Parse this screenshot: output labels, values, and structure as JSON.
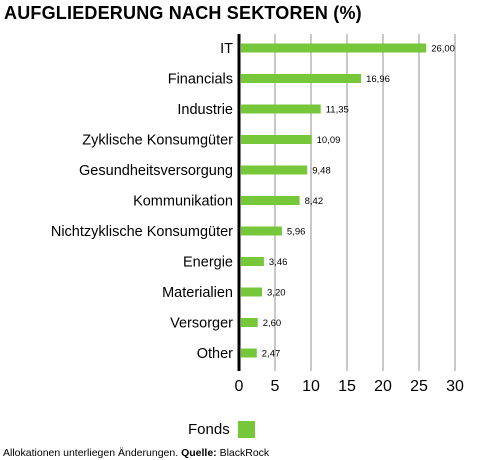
{
  "chart_data": {
    "type": "bar",
    "orientation": "horizontal",
    "title": "AUFGLIEDERUNG NACH SEKTOREN (%)",
    "categories": [
      "IT",
      "Financials",
      "Industrie",
      "Zyklische Konsumgüter",
      "Gesundheitsversorgung",
      "Kommunikation",
      "Nichtzyklische Konsumgüter",
      "Energie",
      "Materialien",
      "Versorger",
      "Other"
    ],
    "series": [
      {
        "name": "Fonds",
        "values": [
          26.0,
          16.96,
          11.35,
          10.09,
          9.48,
          8.42,
          5.96,
          3.46,
          3.2,
          2.6,
          2.47
        ],
        "labels": [
          "26,00",
          "16,96",
          "11,35",
          "10,09",
          "9,48",
          "8,42",
          "5,96",
          "3,46",
          "3,20",
          "2,60",
          "2,47"
        ],
        "color": "#76c83a"
      }
    ],
    "xlim": [
      0,
      30
    ],
    "xticks": [
      0,
      5,
      10,
      15,
      20,
      25,
      30
    ],
    "xlabel": "",
    "ylabel": "",
    "grid": "vertical",
    "legend_position": "bottom"
  },
  "footnote": {
    "text": "Allokationen unterliegen Änderungen.",
    "source_label": "Quelle:",
    "source": "BlackRock"
  },
  "colors": {
    "bar": "#76c83a",
    "grid": "#c8c8c8",
    "axis": "#000000"
  }
}
